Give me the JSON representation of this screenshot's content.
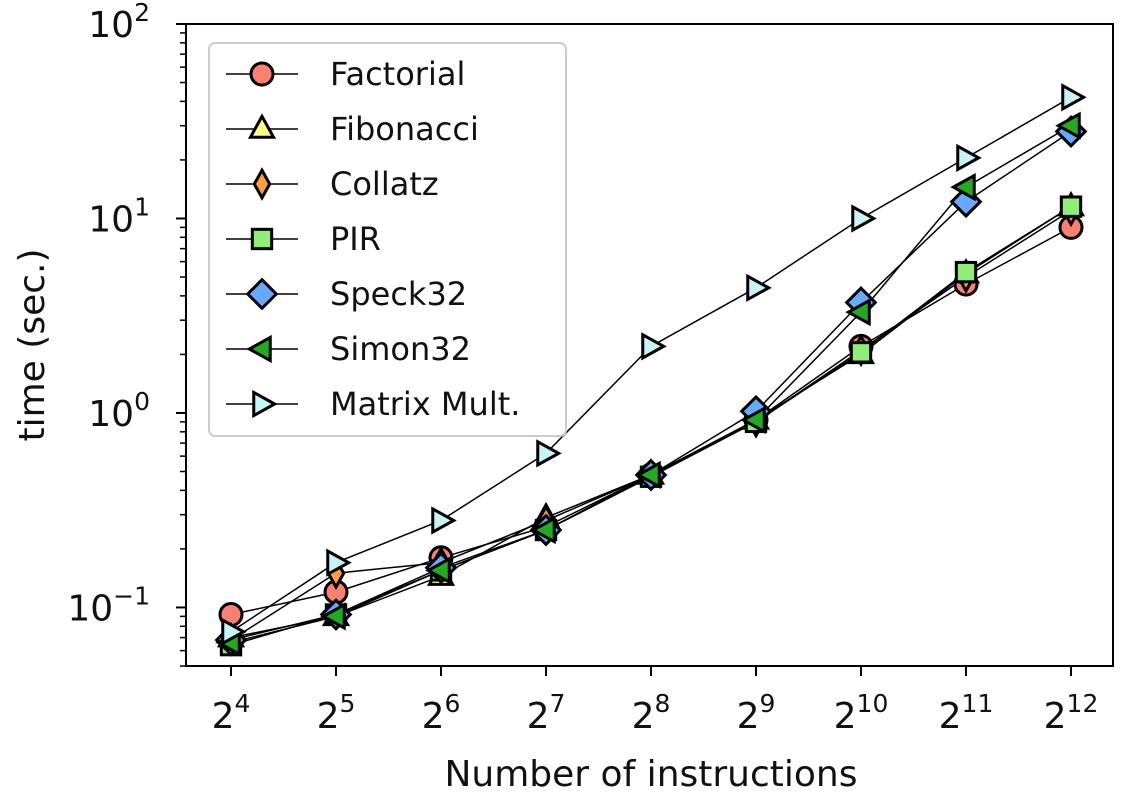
{
  "chart_data": {
    "type": "line",
    "xlabel": "Number of instructions",
    "ylabel": "time (sec.)",
    "x_scale": "log2",
    "y_scale": "log10",
    "x": [
      16,
      32,
      64,
      128,
      256,
      512,
      1024,
      2048,
      4096
    ],
    "x_tick_labels": [
      {
        "base": "2",
        "exp": "4"
      },
      {
        "base": "2",
        "exp": "5"
      },
      {
        "base": "2",
        "exp": "6"
      },
      {
        "base": "2",
        "exp": "7"
      },
      {
        "base": "2",
        "exp": "8"
      },
      {
        "base": "2",
        "exp": "9"
      },
      {
        "base": "2",
        "exp": "10"
      },
      {
        "base": "2",
        "exp": "11"
      },
      {
        "base": "2",
        "exp": "12"
      }
    ],
    "y_tick_labels": [
      {
        "base": "10",
        "exp": "−1",
        "value": 0.1
      },
      {
        "base": "10",
        "exp": "0",
        "value": 1
      },
      {
        "base": "10",
        "exp": "1",
        "value": 10
      },
      {
        "base": "10",
        "exp": "2",
        "value": 100
      }
    ],
    "ylim": [
      0.05,
      100
    ],
    "grid": false,
    "legend_position": "top-left",
    "series": [
      {
        "name": "Factorial",
        "marker": "circle",
        "color": "#fa8072",
        "values": [
          0.092,
          0.12,
          0.18,
          0.26,
          0.48,
          0.92,
          2.2,
          4.6,
          9.0
        ]
      },
      {
        "name": "Fibonacci",
        "marker": "triangle-up",
        "color": "#ffff80",
        "values": [
          0.07,
          0.09,
          0.145,
          0.29,
          0.48,
          0.92,
          2.0,
          5.2,
          11.5
        ]
      },
      {
        "name": "Collatz",
        "marker": "thin-diamond",
        "color": "#ffa040",
        "values": [
          0.068,
          0.15,
          0.17,
          0.28,
          0.48,
          0.9,
          2.1,
          5.0,
          11.0
        ]
      },
      {
        "name": "PIR",
        "marker": "square",
        "color": "#90ee78",
        "values": [
          0.064,
          0.092,
          0.155,
          0.25,
          0.47,
          0.9,
          2.05,
          5.3,
          11.5
        ]
      },
      {
        "name": "Speck32",
        "marker": "diamond",
        "color": "#66aaff",
        "values": [
          0.068,
          0.092,
          0.16,
          0.25,
          0.48,
          1.02,
          3.7,
          12.2,
          28.0
        ]
      },
      {
        "name": "Simon32",
        "marker": "triangle-left",
        "color": "#22aa22",
        "values": [
          0.066,
          0.09,
          0.155,
          0.25,
          0.48,
          0.92,
          3.3,
          14.5,
          30.0
        ]
      },
      {
        "name": "Matrix Mult.",
        "marker": "triangle-right",
        "color": "#c8f4f8",
        "values": [
          0.075,
          0.17,
          0.28,
          0.62,
          2.2,
          4.4,
          10.0,
          20.5,
          42.0
        ]
      }
    ]
  }
}
